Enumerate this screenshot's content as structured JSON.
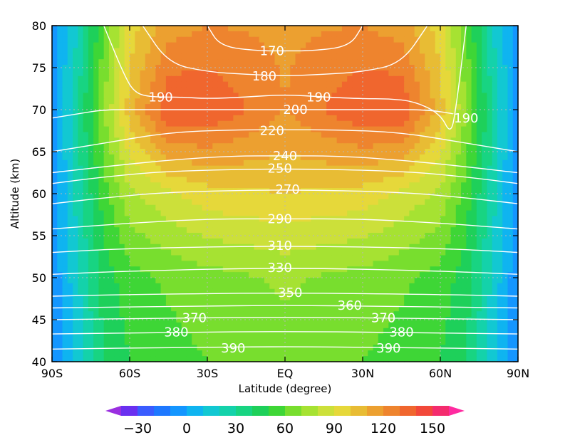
{
  "chart_data": {
    "type": "heatmap",
    "title": "",
    "xlabel": "Latitude (degree)",
    "ylabel": "Altitude (km)",
    "xlim": [
      -90,
      90
    ],
    "ylim": [
      40,
      80
    ],
    "x_ticks": [
      {
        "value": -90,
        "label": "90S"
      },
      {
        "value": -60,
        "label": "60S"
      },
      {
        "value": -30,
        "label": "30S"
      },
      {
        "value": 0,
        "label": "EQ"
      },
      {
        "value": 30,
        "label": "30N"
      },
      {
        "value": 60,
        "label": "60N"
      },
      {
        "value": 90,
        "label": "90N"
      }
    ],
    "y_ticks": [
      {
        "value": 40,
        "label": "40"
      },
      {
        "value": 45,
        "label": "45"
      },
      {
        "value": 50,
        "label": "50"
      },
      {
        "value": 55,
        "label": "55"
      },
      {
        "value": 60,
        "label": "60"
      },
      {
        "value": 65,
        "label": "65"
      },
      {
        "value": 70,
        "label": "70"
      },
      {
        "value": 75,
        "label": "75"
      },
      {
        "value": 80,
        "label": "80"
      }
    ],
    "grid": true,
    "colorbar": {
      "placement": "bottom",
      "levels": [
        -40,
        -30,
        -20,
        -10,
        0,
        10,
        20,
        30,
        40,
        50,
        60,
        70,
        80,
        90,
        100,
        110,
        120,
        130,
        140,
        150,
        160
      ],
      "colors": [
        "#9a2fe0",
        "#6a30f0",
        "#3a5cff",
        "#1e78ff",
        "#1496ff",
        "#0fb4f0",
        "#12c8d2",
        "#14d2aa",
        "#18d482",
        "#1ed05a",
        "#3ed636",
        "#78de2e",
        "#a6e232",
        "#cce03a",
        "#e6d83a",
        "#e8bc34",
        "#eca030",
        "#ee842e",
        "#f0662e",
        "#f2483a",
        "#f42c6e",
        "#ff2aa0"
      ],
      "labels": [
        "−30",
        "0",
        "30",
        "60",
        "90",
        "120",
        "150"
      ],
      "label_values": [
        -30,
        0,
        30,
        60,
        90,
        120,
        150
      ],
      "extend": "both"
    },
    "field_samples": [
      {
        "alt": 40,
        "lat": [
          -90,
          -80,
          -70,
          -60,
          -45,
          -30,
          0,
          30,
          45,
          60,
          70,
          80,
          90
        ],
        "value": [
          -10,
          15,
          40,
          50,
          56,
          60,
          65,
          60,
          56,
          50,
          40,
          15,
          -10
        ]
      },
      {
        "alt": 50,
        "lat": [
          -90,
          -80,
          -70,
          -60,
          -45,
          -30,
          0,
          30,
          45,
          60,
          70,
          80,
          90
        ],
        "value": [
          -8,
          18,
          45,
          56,
          62,
          66,
          72,
          66,
          62,
          56,
          45,
          18,
          -8
        ]
      },
      {
        "alt": 60,
        "lat": [
          -90,
          -80,
          -70,
          -60,
          -45,
          -30,
          0,
          30,
          45,
          60,
          70,
          80,
          90
        ],
        "value": [
          -8,
          25,
          55,
          78,
          88,
          96,
          100,
          96,
          88,
          78,
          55,
          25,
          -8
        ]
      },
      {
        "alt": 70,
        "lat": [
          -90,
          -80,
          -70,
          -60,
          -45,
          -30,
          0,
          30,
          45,
          60,
          70,
          80,
          90
        ],
        "value": [
          -5,
          30,
          70,
          105,
          140,
          140,
          120,
          140,
          140,
          105,
          70,
          30,
          -5
        ]
      },
      {
        "alt": 80,
        "lat": [
          -90,
          -80,
          -70,
          -60,
          -45,
          -30,
          0,
          30,
          45,
          60,
          70,
          80,
          90
        ],
        "value": [
          -5,
          20,
          60,
          95,
          115,
          120,
          118,
          120,
          115,
          95,
          60,
          20,
          -5
        ]
      }
    ],
    "contour_lines": [
      {
        "value": 170,
        "label": "170",
        "label_at": [
          -5,
          77
        ],
        "points": [
          [
            -30,
            80
          ],
          [
            -25,
            77.5
          ],
          [
            -10,
            77
          ],
          [
            0,
            77
          ],
          [
            10,
            77
          ],
          [
            25,
            77.5
          ],
          [
            30,
            80
          ]
        ]
      },
      {
        "value": 180,
        "label": "180",
        "label_at": [
          -8,
          74
        ],
        "points": [
          [
            -55,
            80
          ],
          [
            -45,
            75.5
          ],
          [
            -30,
            74.5
          ],
          [
            -15,
            74.2
          ],
          [
            0,
            74
          ],
          [
            15,
            74.2
          ],
          [
            30,
            74.5
          ],
          [
            45,
            75.5
          ],
          [
            55,
            80
          ]
        ]
      },
      {
        "value": 190,
        "label": "190",
        "label_at": [
          -48,
          71.5
        ],
        "points": [
          [
            -70,
            80
          ],
          [
            -62,
            74
          ],
          [
            -58,
            72
          ],
          [
            -52,
            71.5
          ],
          [
            -40,
            71.5
          ],
          [
            -30,
            71.3
          ],
          [
            -15,
            71.5
          ],
          [
            0,
            71.8
          ],
          [
            15,
            71.5
          ],
          [
            30,
            71.3
          ],
          [
            40,
            71.3
          ],
          [
            50,
            71
          ],
          [
            60,
            69.5
          ],
          [
            64,
            67
          ],
          [
            66,
            70
          ],
          [
            70,
            80
          ]
        ]
      },
      {
        "value": 190,
        "label": "190",
        "label_at": [
          13,
          71.5
        ],
        "points": []
      },
      {
        "value": 190,
        "label": "190",
        "label_at": [
          70,
          69
        ],
        "points": []
      },
      {
        "value": 200,
        "label": "200",
        "label_at": [
          4,
          70
        ],
        "points": [
          [
            -90,
            69
          ],
          [
            -80,
            69.5
          ],
          [
            -70,
            70
          ],
          [
            -55,
            70
          ],
          [
            -35,
            70
          ],
          [
            -15,
            70
          ],
          [
            0,
            70
          ],
          [
            15,
            70
          ],
          [
            35,
            70
          ],
          [
            55,
            70
          ],
          [
            65,
            69.5
          ]
        ]
      },
      {
        "value": 220,
        "label": "220",
        "label_at": [
          -5,
          67.5
        ],
        "points": [
          [
            -90,
            65
          ],
          [
            -70,
            66
          ],
          [
            -45,
            67.3
          ],
          [
            -20,
            67.6
          ],
          [
            0,
            67.6
          ],
          [
            20,
            67.6
          ],
          [
            45,
            67.3
          ],
          [
            70,
            66
          ],
          [
            90,
            65
          ]
        ]
      },
      {
        "value": 240,
        "label": "240",
        "label_at": [
          0,
          64.5
        ],
        "points": [
          [
            -90,
            62.5
          ],
          [
            -70,
            63.2
          ],
          [
            -45,
            64
          ],
          [
            -20,
            64.5
          ],
          [
            0,
            64.5
          ],
          [
            20,
            64.5
          ],
          [
            45,
            64
          ],
          [
            70,
            63.2
          ],
          [
            90,
            62.5
          ]
        ]
      },
      {
        "value": 250,
        "label": "250",
        "label_at": [
          -2,
          63
        ],
        "points": [
          [
            -90,
            61.2
          ],
          [
            -70,
            62
          ],
          [
            -45,
            62.7
          ],
          [
            0,
            63
          ],
          [
            45,
            62.7
          ],
          [
            70,
            62
          ],
          [
            90,
            61.2
          ]
        ]
      },
      {
        "value": 270,
        "label": "270",
        "label_at": [
          1,
          60.5
        ],
        "points": [
          [
            -90,
            58.8
          ],
          [
            -70,
            59.5
          ],
          [
            -45,
            60.2
          ],
          [
            0,
            60.5
          ],
          [
            45,
            60.2
          ],
          [
            70,
            59.5
          ],
          [
            90,
            58.8
          ]
        ]
      },
      {
        "value": 290,
        "label": "290",
        "label_at": [
          -2,
          57
        ],
        "points": [
          [
            -90,
            55.8
          ],
          [
            -60,
            56.5
          ],
          [
            -30,
            57
          ],
          [
            0,
            57
          ],
          [
            30,
            57
          ],
          [
            60,
            56.5
          ],
          [
            90,
            55.8
          ]
        ]
      },
      {
        "value": 310,
        "label": "310",
        "label_at": [
          -2,
          53.8
        ],
        "points": [
          [
            -90,
            53
          ],
          [
            -60,
            53.5
          ],
          [
            0,
            53.8
          ],
          [
            60,
            53.5
          ],
          [
            90,
            53
          ]
        ]
      },
      {
        "value": 330,
        "label": "330",
        "label_at": [
          -2,
          51.2
        ],
        "points": [
          [
            -90,
            50.4
          ],
          [
            -60,
            50.8
          ],
          [
            0,
            51.2
          ],
          [
            60,
            50.8
          ],
          [
            90,
            50.4
          ]
        ]
      },
      {
        "value": 350,
        "label": "350",
        "label_at": [
          2,
          48.2
        ],
        "points": [
          [
            -90,
            47.8
          ],
          [
            -60,
            48
          ],
          [
            0,
            48.2
          ],
          [
            60,
            48
          ],
          [
            90,
            47.8
          ]
        ]
      },
      {
        "value": 360,
        "label": "360",
        "label_at": [
          25,
          46.7
        ],
        "points": [
          [
            -90,
            46.4
          ],
          [
            -40,
            46.6
          ],
          [
            0,
            46.7
          ],
          [
            40,
            46.6
          ],
          [
            90,
            46.4
          ]
        ]
      },
      {
        "value": 370,
        "label": "370",
        "label_at": [
          -35,
          45.2
        ],
        "points": [
          [
            -90,
            45
          ],
          [
            -40,
            45.2
          ],
          [
            0,
            45.3
          ],
          [
            40,
            45.2
          ],
          [
            90,
            45
          ]
        ]
      },
      {
        "value": 370,
        "label": "370",
        "label_at": [
          38,
          45.2
        ],
        "points": []
      },
      {
        "value": 380,
        "label": "380",
        "label_at": [
          -42,
          43.5
        ],
        "points": [
          [
            -90,
            43.3
          ],
          [
            -40,
            43.5
          ],
          [
            0,
            43.6
          ],
          [
            40,
            43.5
          ],
          [
            90,
            43.3
          ]
        ]
      },
      {
        "value": 380,
        "label": "380",
        "label_at": [
          45,
          43.5
        ],
        "points": []
      },
      {
        "value": 390,
        "label": "390",
        "label_at": [
          -20,
          41.6
        ],
        "points": [
          [
            -90,
            41.5
          ],
          [
            -40,
            41.7
          ],
          [
            0,
            41.8
          ],
          [
            40,
            41.7
          ],
          [
            90,
            41.5
          ]
        ]
      },
      {
        "value": 390,
        "label": "390",
        "label_at": [
          40,
          41.6
        ],
        "points": []
      }
    ]
  }
}
